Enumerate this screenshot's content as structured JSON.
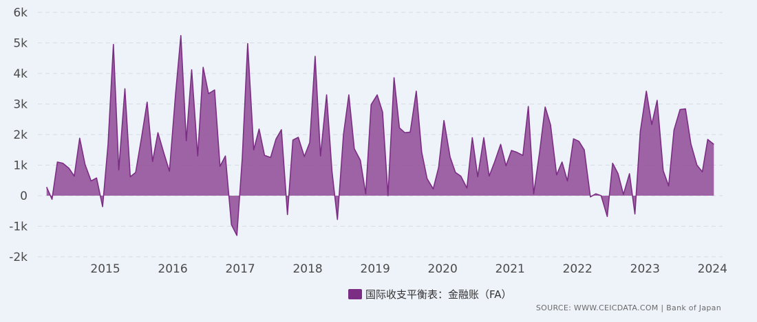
{
  "chart_data": {
    "type": "area",
    "title": "",
    "xlabel": "",
    "ylabel": "",
    "ylim": [
      -2000,
      6000
    ],
    "yticks": [
      {
        "value": 6000,
        "label": "6k"
      },
      {
        "value": 5000,
        "label": "5k"
      },
      {
        "value": 4000,
        "label": "4k"
      },
      {
        "value": 3000,
        "label": "3k"
      },
      {
        "value": 2000,
        "label": "2k"
      },
      {
        "value": 1000,
        "label": "1k"
      },
      {
        "value": 0,
        "label": "0"
      },
      {
        "value": -1000,
        "label": "-1k"
      },
      {
        "value": -2000,
        "label": "-2k"
      }
    ],
    "xticks": [
      {
        "value": 2015,
        "label": "2015"
      },
      {
        "value": 2016,
        "label": "2016"
      },
      {
        "value": 2017,
        "label": "2017"
      },
      {
        "value": 2018,
        "label": "2018"
      },
      {
        "value": 2019,
        "label": "2019"
      },
      {
        "value": 2020,
        "label": "2020"
      },
      {
        "value": 2021,
        "label": "2021"
      },
      {
        "value": 2022,
        "label": "2022"
      },
      {
        "value": 2023,
        "label": "2023"
      },
      {
        "value": 2024,
        "label": "2024"
      }
    ],
    "grid": true,
    "legend_position": "bottom-center",
    "series": [
      {
        "name": "国际收支平衡表：金融账（FA）",
        "color": "#7b2d84",
        "fill": "#934f99",
        "points": [
          {
            "x": 2014.13,
            "y": 280
          },
          {
            "x": 2014.21,
            "y": -120
          },
          {
            "x": 2014.29,
            "y": 1100
          },
          {
            "x": 2014.37,
            "y": 1060
          },
          {
            "x": 2014.46,
            "y": 900
          },
          {
            "x": 2014.54,
            "y": 640
          },
          {
            "x": 2014.62,
            "y": 1880
          },
          {
            "x": 2014.7,
            "y": 1020
          },
          {
            "x": 2014.79,
            "y": 480
          },
          {
            "x": 2014.87,
            "y": 580
          },
          {
            "x": 2014.96,
            "y": -360
          },
          {
            "x": 2015.04,
            "y": 1680
          },
          {
            "x": 2015.12,
            "y": 4950
          },
          {
            "x": 2015.2,
            "y": 840
          },
          {
            "x": 2015.29,
            "y": 3500
          },
          {
            "x": 2015.37,
            "y": 620
          },
          {
            "x": 2015.45,
            "y": 760
          },
          {
            "x": 2015.54,
            "y": 1950
          },
          {
            "x": 2015.62,
            "y": 3060
          },
          {
            "x": 2015.7,
            "y": 1120
          },
          {
            "x": 2015.78,
            "y": 2060
          },
          {
            "x": 2015.87,
            "y": 1380
          },
          {
            "x": 2015.95,
            "y": 800
          },
          {
            "x": 2016.04,
            "y": 3300
          },
          {
            "x": 2016.12,
            "y": 5240
          },
          {
            "x": 2016.2,
            "y": 1800
          },
          {
            "x": 2016.28,
            "y": 4120
          },
          {
            "x": 2016.37,
            "y": 1300
          },
          {
            "x": 2016.45,
            "y": 4200
          },
          {
            "x": 2016.53,
            "y": 3340
          },
          {
            "x": 2016.62,
            "y": 3460
          },
          {
            "x": 2016.7,
            "y": 960
          },
          {
            "x": 2016.78,
            "y": 1300
          },
          {
            "x": 2016.87,
            "y": -950
          },
          {
            "x": 2016.95,
            "y": -1300
          },
          {
            "x": 2017.03,
            "y": 1220
          },
          {
            "x": 2017.11,
            "y": 4980
          },
          {
            "x": 2017.2,
            "y": 1500
          },
          {
            "x": 2017.28,
            "y": 2180
          },
          {
            "x": 2017.36,
            "y": 1320
          },
          {
            "x": 2017.45,
            "y": 1250
          },
          {
            "x": 2017.53,
            "y": 1850
          },
          {
            "x": 2017.61,
            "y": 2160
          },
          {
            "x": 2017.7,
            "y": -620
          },
          {
            "x": 2017.78,
            "y": 1820
          },
          {
            "x": 2017.86,
            "y": 1910
          },
          {
            "x": 2017.95,
            "y": 1280
          },
          {
            "x": 2018.03,
            "y": 1740
          },
          {
            "x": 2018.11,
            "y": 4560
          },
          {
            "x": 2018.19,
            "y": 1300
          },
          {
            "x": 2018.28,
            "y": 3300
          },
          {
            "x": 2018.36,
            "y": 800
          },
          {
            "x": 2018.44,
            "y": -780
          },
          {
            "x": 2018.53,
            "y": 2000
          },
          {
            "x": 2018.61,
            "y": 3300
          },
          {
            "x": 2018.69,
            "y": 1540
          },
          {
            "x": 2018.78,
            "y": 1160
          },
          {
            "x": 2018.86,
            "y": 60
          },
          {
            "x": 2018.94,
            "y": 2980
          },
          {
            "x": 2019.03,
            "y": 3300
          },
          {
            "x": 2019.11,
            "y": 2740
          },
          {
            "x": 2019.19,
            "y": 0
          },
          {
            "x": 2019.28,
            "y": 3860
          },
          {
            "x": 2019.36,
            "y": 2220
          },
          {
            "x": 2019.44,
            "y": 2060
          },
          {
            "x": 2019.52,
            "y": 2080
          },
          {
            "x": 2019.61,
            "y": 3420
          },
          {
            "x": 2019.69,
            "y": 1420
          },
          {
            "x": 2019.77,
            "y": 560
          },
          {
            "x": 2019.86,
            "y": 220
          },
          {
            "x": 2019.94,
            "y": 920
          },
          {
            "x": 2020.02,
            "y": 2460
          },
          {
            "x": 2020.11,
            "y": 1270
          },
          {
            "x": 2020.19,
            "y": 760
          },
          {
            "x": 2020.27,
            "y": 640
          },
          {
            "x": 2020.36,
            "y": 250
          },
          {
            "x": 2020.44,
            "y": 1900
          },
          {
            "x": 2020.52,
            "y": 620
          },
          {
            "x": 2020.61,
            "y": 1900
          },
          {
            "x": 2020.69,
            "y": 640
          },
          {
            "x": 2020.77,
            "y": 1100
          },
          {
            "x": 2020.86,
            "y": 1680
          },
          {
            "x": 2020.94,
            "y": 980
          },
          {
            "x": 2021.02,
            "y": 1480
          },
          {
            "x": 2021.1,
            "y": 1420
          },
          {
            "x": 2021.19,
            "y": 1320
          },
          {
            "x": 2021.27,
            "y": 2920
          },
          {
            "x": 2021.35,
            "y": 60
          },
          {
            "x": 2021.44,
            "y": 1460
          },
          {
            "x": 2021.52,
            "y": 2900
          },
          {
            "x": 2021.6,
            "y": 2320
          },
          {
            "x": 2021.69,
            "y": 680
          },
          {
            "x": 2021.77,
            "y": 1100
          },
          {
            "x": 2021.85,
            "y": 480
          },
          {
            "x": 2021.94,
            "y": 1860
          },
          {
            "x": 2022.02,
            "y": 1780
          },
          {
            "x": 2022.1,
            "y": 1500
          },
          {
            "x": 2022.19,
            "y": -40
          },
          {
            "x": 2022.27,
            "y": 60
          },
          {
            "x": 2022.35,
            "y": 0
          },
          {
            "x": 2022.44,
            "y": -680
          },
          {
            "x": 2022.52,
            "y": 1060
          },
          {
            "x": 2022.6,
            "y": 720
          },
          {
            "x": 2022.68,
            "y": 40
          },
          {
            "x": 2022.77,
            "y": 720
          },
          {
            "x": 2022.85,
            "y": -600
          },
          {
            "x": 2022.93,
            "y": 2100
          },
          {
            "x": 2023.02,
            "y": 3420
          },
          {
            "x": 2023.1,
            "y": 2330
          },
          {
            "x": 2023.18,
            "y": 3120
          },
          {
            "x": 2023.27,
            "y": 820
          },
          {
            "x": 2023.35,
            "y": 320
          },
          {
            "x": 2023.43,
            "y": 2150
          },
          {
            "x": 2023.52,
            "y": 2820
          },
          {
            "x": 2023.6,
            "y": 2840
          },
          {
            "x": 2023.68,
            "y": 1700
          },
          {
            "x": 2023.77,
            "y": 1000
          },
          {
            "x": 2023.85,
            "y": 780
          },
          {
            "x": 2023.93,
            "y": 1840
          },
          {
            "x": 2024.02,
            "y": 1680
          }
        ]
      }
    ]
  },
  "legend": {
    "label": "国际收支平衡表：金融账（FA）",
    "swatch_color": "#7b2d84"
  },
  "source": {
    "text": "SOURCE: WWW.CEICDATA.COM | Bank of Japan"
  }
}
